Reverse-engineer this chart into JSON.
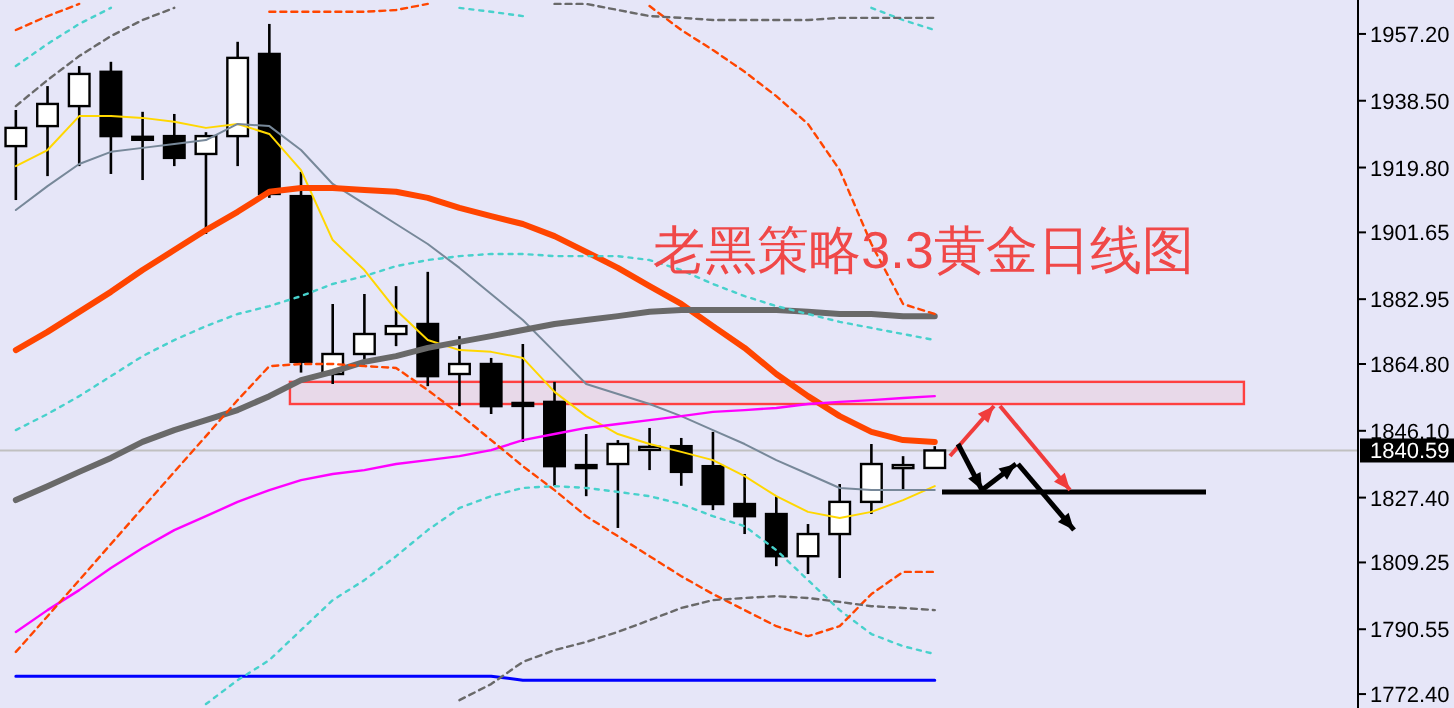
{
  "chart_data": {
    "type": "candlestick",
    "title": "老黑策略3.3黄金日线图",
    "categories": [
      null,
      null,
      null,
      null,
      null,
      null,
      null,
      null,
      null,
      null,
      null,
      null,
      null,
      null,
      null,
      null,
      null,
      null,
      null,
      null,
      null,
      null,
      null,
      null,
      null,
      null,
      null,
      null,
      null,
      null
    ],
    "ohlc": [
      [
        1925.8,
        1935.9,
        1910.7,
        1930.9
      ],
      [
        1931.4,
        1942.6,
        1917.4,
        1937.6
      ],
      [
        1937.0,
        1948.2,
        1920.2,
        1946.0
      ],
      [
        1946.6,
        1949.4,
        1918.0,
        1928.6
      ],
      [
        1928.4,
        1935.4,
        1916.3,
        1927.8
      ],
      [
        1928.6,
        1934.8,
        1920.2,
        1922.5
      ],
      [
        1923.6,
        1929.7,
        1901.2,
        1928.6
      ],
      [
        1928.6,
        1955.0,
        1920.2,
        1950.5
      ],
      [
        1951.6,
        1960.0,
        1911.3,
        1912.4
      ],
      [
        1911.8,
        1918.6,
        1862.4,
        1865.4
      ],
      [
        1862.0,
        1881.6,
        1859.2,
        1867.6
      ],
      [
        1867.6,
        1884.4,
        1864.8,
        1873.2
      ],
      [
        1873.2,
        1886.6,
        1869.8,
        1875.4
      ],
      [
        1876.0,
        1890.6,
        1858.6,
        1861.4
      ],
      [
        1862.0,
        1872.6,
        1853.0,
        1864.8
      ],
      [
        1864.8,
        1866.5,
        1850.8,
        1853.0
      ],
      [
        1853.9,
        1870.4,
        1843.0,
        1853.3
      ],
      [
        1854.2,
        1859.8,
        1830.7,
        1836.2
      ],
      [
        1836.5,
        1845.2,
        1827.8,
        1836.0
      ],
      [
        1836.8,
        1843.5,
        1818.9,
        1842.4
      ],
      [
        1841.0,
        1846.9,
        1835.1,
        1841.6
      ],
      [
        1841.8,
        1844.1,
        1830.7,
        1834.6
      ],
      [
        1836.2,
        1845.8,
        1823.9,
        1825.6
      ],
      [
        1825.6,
        1834.0,
        1817.2,
        1822.2
      ],
      [
        1822.8,
        1827.8,
        1808.2,
        1811.0
      ],
      [
        1811.0,
        1820.0,
        1806.0,
        1817.2
      ],
      [
        1817.2,
        1831.2,
        1804.9,
        1826.2
      ],
      [
        1826.2,
        1842.4,
        1822.8,
        1836.8
      ],
      [
        1836.0,
        1839.0,
        1829.5,
        1836.5
      ],
      [
        1835.7,
        1841.8,
        1835.7,
        1840.6
      ]
    ],
    "series": [
      {
        "type": "line",
        "color": "#ffd700",
        "line_style": "solid",
        "values": [
          1920.2,
          1924.7,
          1934.2,
          1934.2,
          1933.7,
          1932.6,
          1930.9,
          1932.0,
          1929.2,
          1919.1,
          1899.5,
          1891.1,
          1879.9,
          1871.5,
          1868.7,
          1868.2,
          1866.5,
          1857.0,
          1850.2,
          1845.2,
          1842.4,
          1840.2,
          1837.9,
          1833.4,
          1827.8,
          1823.4,
          1821.7,
          1823.4,
          1826.7,
          1830.6
        ]
      },
      {
        "type": "line",
        "color": "#778899",
        "line_style": "solid",
        "values": [
          1907.9,
          1914.6,
          1920.8,
          1924.2,
          1925.3,
          1926.4,
          1927.5,
          1932.0,
          1931.4,
          1924.7,
          1915.2,
          1909.6,
          1904.0,
          1898.4,
          1891.7,
          1884.4,
          1877.1,
          1868.2,
          1859.2,
          1856.4,
          1853.6,
          1850.2,
          1846.3,
          1842.4,
          1837.9,
          1834.0,
          1830.1,
          1829.5,
          1829.5,
          1829.5
        ]
      },
      {
        "type": "line",
        "color": "#ff4500",
        "line_style": "solid",
        "values": [
          1868.7,
          1873.8,
          1879.4,
          1885.0,
          1891.1,
          1896.7,
          1902.3,
          1907.4,
          1913.0,
          1914.1,
          1914.1,
          1913.5,
          1913.0,
          1911.3,
          1908.5,
          1906.2,
          1904.0,
          1900.6,
          1896.2,
          1891.7,
          1886.6,
          1881.6,
          1875.4,
          1869.3,
          1862.0,
          1855.8,
          1850.2,
          1845.8,
          1843.5,
          1843.0
        ]
      },
      {
        "type": "line",
        "color": "#696969",
        "line_style": "solid",
        "values": [
          1826.7,
          1830.6,
          1834.6,
          1838.5,
          1843.0,
          1846.3,
          1849.1,
          1851.9,
          1855.8,
          1860.3,
          1862.6,
          1865.4,
          1867.0,
          1869.3,
          1871.0,
          1872.6,
          1874.3,
          1876.0,
          1877.1,
          1878.2,
          1879.4,
          1879.9,
          1879.9,
          1879.9,
          1879.9,
          1879.4,
          1878.8,
          1878.8,
          1878.2,
          1878.2
        ]
      },
      {
        "type": "line",
        "color": "#ff00ff",
        "line_style": "solid",
        "values": [
          1789.8,
          1795.9,
          1801.5,
          1807.7,
          1813.3,
          1818.3,
          1822.2,
          1826.2,
          1829.5,
          1832.3,
          1834.0,
          1835.1,
          1836.8,
          1837.9,
          1839.0,
          1840.7,
          1843.5,
          1845.2,
          1846.9,
          1848.0,
          1849.1,
          1850.2,
          1851.4,
          1851.9,
          1852.5,
          1853.6,
          1854.2,
          1854.7,
          1855.3,
          1855.8
        ]
      },
      {
        "type": "line",
        "color": "#0000ff",
        "line_style": "solid",
        "values": [
          1777.4,
          1777.4,
          1777.4,
          1777.4,
          1777.4,
          1777.4,
          1777.4,
          1777.4,
          1777.4,
          1777.4,
          1777.4,
          1777.4,
          1777.4,
          1777.4,
          1777.4,
          1777.4,
          1776.3,
          1776.3,
          1776.3,
          1776.3,
          1776.3,
          1776.3,
          1776.3,
          1776.3,
          1776.3,
          1776.3,
          1776.3,
          1776.3,
          1776.3,
          1776.3
        ]
      },
      {
        "type": "line",
        "color": "#48d1cc",
        "line_style": "dotted",
        "values": [
          1948.2,
          1954.4,
          1960.0,
          1964.5,
          null,
          null,
          null,
          null,
          null,
          null,
          null,
          null,
          null,
          null,
          1964.5,
          1963.4,
          1962.2,
          null,
          null,
          null,
          null,
          null,
          null,
          null,
          null,
          null,
          null,
          1964.5,
          1961.1,
          1958.3
        ]
      },
      {
        "type": "line",
        "color": "#48d1cc",
        "line_style": "dotted",
        "values": [
          1846.3,
          1850.8,
          1855.8,
          1861.4,
          1867.0,
          1871.5,
          1875.4,
          1878.8,
          1881.0,
          1883.8,
          1887.2,
          1889.4,
          1892.2,
          1893.9,
          1895.0,
          1895.6,
          1895.6,
          1895.0,
          1895.0,
          1895.0,
          1893.9,
          1891.1,
          1887.2,
          1883.8,
          1881.0,
          1878.8,
          1876.6,
          1874.9,
          1873.2,
          1871.5
        ]
      },
      {
        "type": "line",
        "color": "#48d1cc",
        "line_style": "dotted",
        "values": [
          null,
          null,
          null,
          null,
          null,
          null,
          1769.6,
          1776.3,
          1781.9,
          1790.3,
          1798.7,
          1804.3,
          1811.0,
          1818.3,
          1824.5,
          1827.8,
          1830.1,
          1830.6,
          1830.1,
          1829.0,
          1827.8,
          1825.6,
          1822.2,
          1819.4,
          1812.7,
          1804.3,
          1795.9,
          1789.2,
          1785.8,
          1783.6
        ]
      },
      {
        "type": "line",
        "color": "#ff4500",
        "line_style": "dashed",
        "values": [
          1958.3,
          1962.2,
          1965.6,
          null,
          null,
          null,
          null,
          null,
          1963.4,
          1963.4,
          1963.4,
          1963.4,
          1963.9,
          1965.6,
          null,
          null,
          null,
          null,
          null,
          null,
          1965.0,
          1958.3,
          1952.7,
          1946.6,
          1939.8,
          1932.0,
          1919.1,
          1898.4,
          1881.6,
          1878.8
        ]
      },
      {
        "type": "line",
        "color": "#ff4500",
        "line_style": "dashed",
        "values": [
          1784.2,
          1794.2,
          1804.3,
          1814.4,
          1824.5,
          1834.6,
          1844.6,
          1854.7,
          1864.2,
          1864.8,
          1864.8,
          1864.2,
          1863.7,
          1857.5,
          1850.8,
          1843.5,
          1836.2,
          1829.5,
          1822.2,
          1816.6,
          1811.0,
          1805.4,
          1800.4,
          1795.9,
          1791.4,
          1788.6,
          1791.4,
          1800.4,
          1806.6,
          1806.6
        ]
      },
      {
        "type": "line",
        "color": "#696969",
        "line_style": "dashed",
        "values": [
          1937.0,
          1944.3,
          1951.0,
          1956.6,
          1961.1,
          1964.5,
          null,
          null,
          null,
          null,
          null,
          null,
          null,
          null,
          null,
          null,
          null,
          1965.6,
          1965.6,
          1963.9,
          1962.2,
          1961.7,
          1961.1,
          1961.1,
          1961.1,
          1961.1,
          1961.7,
          1961.7,
          1961.7,
          1961.7
        ]
      },
      {
        "type": "line",
        "color": "#696969",
        "line_style": "dashed",
        "values": [
          null,
          null,
          null,
          null,
          null,
          null,
          null,
          null,
          null,
          null,
          null,
          null,
          null,
          null,
          1770.7,
          1775.2,
          1781.4,
          1784.7,
          1787.0,
          1789.8,
          1793.1,
          1796.5,
          1798.7,
          1799.3,
          1799.8,
          1799.3,
          1798.2,
          1797.0,
          1796.5,
          1795.9
        ]
      }
    ],
    "ylim": [
      1768.5,
      1966.7
    ],
    "yticks": [
      {
        "value": 1957.2,
        "label": "1957.20"
      },
      {
        "value": 1938.5,
        "label": "1938.50"
      },
      {
        "value": 1919.8,
        "label": "1919.80"
      },
      {
        "value": 1901.65,
        "label": "1901.65"
      },
      {
        "value": 1882.95,
        "label": "1882.95"
      },
      {
        "value": 1864.8,
        "label": "1864.80"
      },
      {
        "value": 1846.1,
        "label": "1846.10"
      },
      {
        "value": 1827.4,
        "label": "1827.40"
      },
      {
        "value": 1809.25,
        "label": "1809.25"
      },
      {
        "value": 1790.55,
        "label": "1790.55"
      },
      {
        "value": 1772.4,
        "label": "1772.40"
      }
    ],
    "ref_lines": [
      {
        "axis": "y",
        "value": 1840.59,
        "label": "1840.59",
        "color": "#c0c0c0"
      }
    ],
    "bands": [
      {
        "axis": "y",
        "from": 1853.6,
        "to": 1859.8,
        "color": "#ff4040"
      }
    ],
    "grid": false
  }
}
